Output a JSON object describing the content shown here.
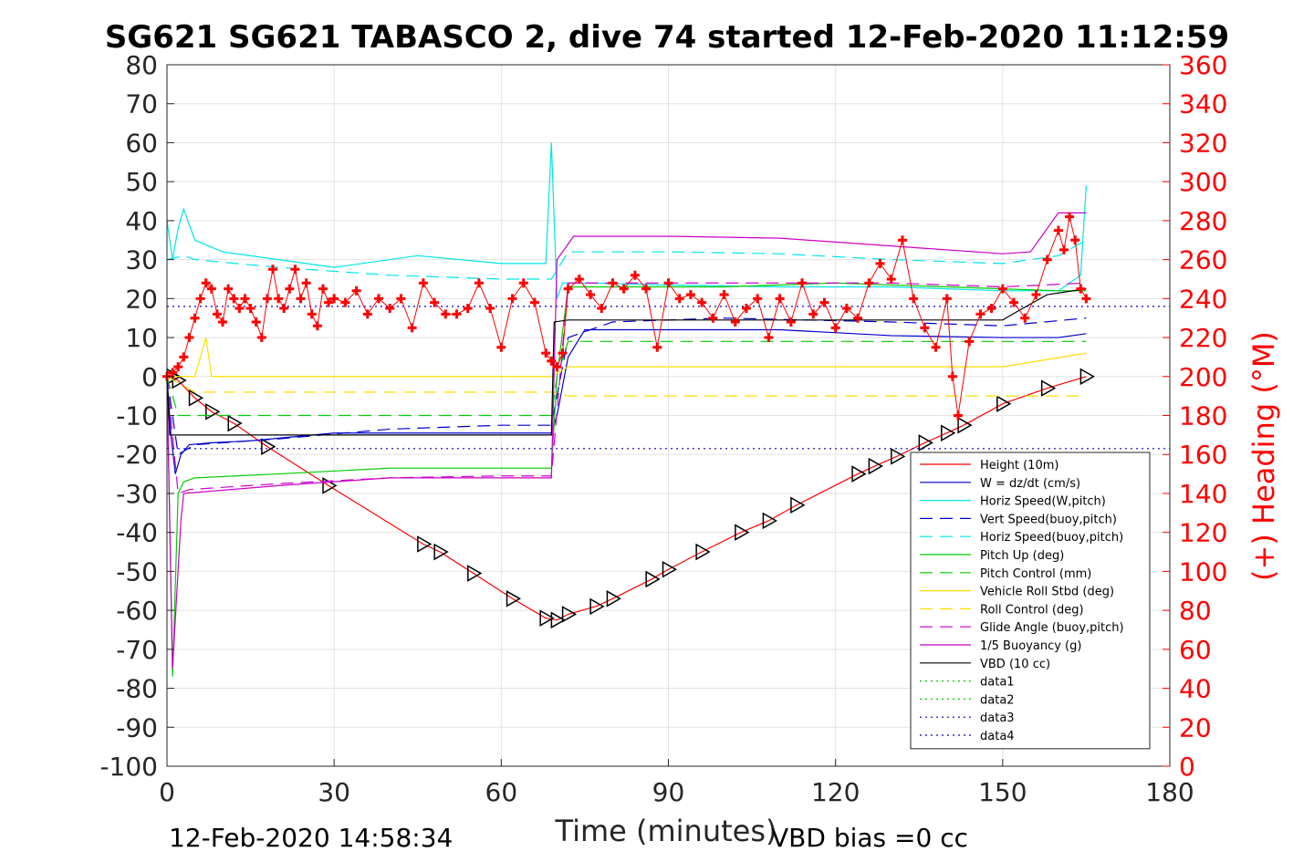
{
  "chart_data": {
    "type": "line",
    "title": "SG621 SG621 TABASCO 2, dive 74 started 12-Feb-2020 11:12:59",
    "xlabel": "Time (minutes)",
    "ylabel_right": "(+) Heading (°M)",
    "xlim": [
      0,
      180
    ],
    "ylim_left": [
      -100,
      80
    ],
    "ylim_right": [
      0,
      360
    ],
    "x_ticks": [
      "0",
      "30",
      "60",
      "90",
      "120",
      "150",
      "180"
    ],
    "y_left_ticks": [
      "80",
      "70",
      "60",
      "50",
      "40",
      "30",
      "20",
      "10",
      "0",
      "-10",
      "-20",
      "-30",
      "-40",
      "-50",
      "-60",
      "-70",
      "-80",
      "-90",
      "-100"
    ],
    "y_right_ticks": [
      "360",
      "340",
      "320",
      "300",
      "280",
      "260",
      "240",
      "220",
      "200",
      "180",
      "160",
      "140",
      "120",
      "100",
      "80",
      "60",
      "40",
      "20",
      "0"
    ],
    "grid": true,
    "legend_position": "bottom-right",
    "footer_left": "12-Feb-2020 14:58:34",
    "footer_right": "VBD bias =0 cc",
    "series": [
      {
        "name": "Height (10m)",
        "color": "#ff0000",
        "style": "solid",
        "x": [
          0,
          1,
          2,
          5,
          8,
          12,
          18,
          29,
          46,
          49,
          55,
          62,
          68,
          70,
          72,
          77,
          80,
          87,
          90,
          96,
          103,
          108,
          113,
          124,
          127,
          131,
          136,
          140,
          143,
          150,
          158,
          165
        ],
        "y": [
          0,
          0,
          -1,
          -5.5,
          -9,
          -12,
          -18,
          -28,
          -43,
          -45,
          -50.5,
          -57,
          -62,
          -62.5,
          -61,
          -59,
          -57,
          -52,
          -49.5,
          -45,
          -40,
          -37,
          -33,
          -25,
          -23,
          -20.5,
          -17,
          -14.5,
          -12.5,
          -7,
          -3,
          0
        ]
      },
      {
        "name": "W = dz/dt (cm/s)",
        "color": "#0000cc",
        "style": "solid",
        "x": [
          0,
          0.7,
          1.5,
          2.5,
          4,
          8,
          15,
          30,
          45,
          60,
          69,
          70,
          72,
          75,
          90,
          110,
          130,
          150,
          160,
          165
        ],
        "y": [
          0,
          -15,
          -25,
          -20,
          -17.5,
          -17,
          -16.5,
          -14.5,
          -14.5,
          -14.5,
          -14.5,
          -10,
          5,
          12,
          12,
          12,
          10.5,
          10,
          10,
          11
        ]
      },
      {
        "name": "Horiz Speed(W,pitch)",
        "color": "#00e5e5",
        "style": "solid",
        "x": [
          0,
          1,
          2,
          3,
          5,
          10,
          20,
          30,
          45,
          60,
          68,
          69,
          70,
          71,
          72,
          75,
          90,
          110,
          130,
          150,
          160,
          164,
          165
        ],
        "y": [
          40,
          30,
          38,
          43,
          35,
          32,
          30,
          28,
          31,
          29,
          29,
          60,
          20,
          24,
          24,
          24,
          23.5,
          23,
          23,
          22,
          22,
          26,
          49
        ]
      },
      {
        "name": "Vert Speed(buoy,pitch)",
        "color": "#0000cc",
        "style": "dash",
        "x": [
          0,
          2,
          5,
          20,
          40,
          60,
          69,
          72,
          80,
          100,
          130,
          150,
          165
        ],
        "y": [
          0,
          -20,
          -17.5,
          -16,
          -13.5,
          -12.5,
          -12.5,
          10,
          14,
          15,
          14,
          13,
          15
        ]
      },
      {
        "name": "Horiz Speed(buoy,pitch)",
        "color": "#00e5e5",
        "style": "dash",
        "x": [
          0,
          3,
          5,
          20,
          40,
          60,
          69,
          72,
          90,
          110,
          130,
          150,
          160,
          165
        ],
        "y": [
          30,
          31,
          30,
          28,
          26,
          25,
          25,
          32,
          32,
          31.5,
          30,
          29,
          31,
          35
        ]
      },
      {
        "name": "Pitch Up (deg)",
        "color": "#00cc00",
        "style": "solid",
        "x": [
          0,
          1,
          2,
          3,
          5,
          20,
          40,
          60,
          69,
          70,
          72,
          80,
          100,
          120,
          140,
          160,
          165
        ],
        "y": [
          0,
          -77,
          -30,
          -27,
          -26,
          -25,
          -23.5,
          -23.5,
          -23.5,
          0,
          23,
          23,
          23,
          24,
          23,
          22,
          22
        ]
      },
      {
        "name": "Pitch Control (mm)",
        "color": "#00cc00",
        "style": "dash",
        "x": [
          0,
          2,
          5,
          40,
          69,
          70,
          72,
          80,
          100,
          130,
          150,
          165
        ],
        "y": [
          0,
          -10,
          -10,
          -10,
          -10,
          0,
          9,
          9,
          9,
          9,
          9,
          9
        ]
      },
      {
        "name": "Vehicle Roll Stbd (deg)",
        "color": "#ffdd00",
        "style": "solid",
        "x": [
          0,
          5,
          7,
          8,
          9,
          30,
          45,
          60,
          69,
          72,
          75,
          90,
          110,
          130,
          150,
          165
        ],
        "y": [
          0,
          0,
          10,
          0,
          0,
          0,
          0,
          0,
          0,
          2.5,
          2.5,
          2.5,
          2.5,
          2.5,
          2.5,
          6
        ]
      },
      {
        "name": "Roll Control (deg)",
        "color": "#ffdd00",
        "style": "dash",
        "x": [
          0,
          5,
          20,
          40,
          60,
          69,
          72,
          90,
          110,
          130,
          150,
          165
        ],
        "y": [
          0,
          -4,
          -4,
          -4,
          -4,
          -4,
          -5,
          -5,
          -5,
          -5,
          -5,
          -5
        ]
      },
      {
        "name": "Glide Angle (buoy,pitch)",
        "color": "#cc00cc",
        "style": "dash",
        "x": [
          0,
          2,
          4,
          20,
          40,
          60,
          69,
          72,
          90,
          110,
          130,
          150,
          165
        ],
        "y": [
          0,
          -30,
          -29,
          -27.5,
          -26,
          -25.5,
          -25.5,
          24,
          24,
          24,
          24,
          23,
          24
        ]
      },
      {
        "name": "1/5 Buoyancy (g)",
        "color": "#cc00cc",
        "style": "solid",
        "x": [
          0,
          1,
          2.5,
          3,
          20,
          40,
          60,
          69,
          70,
          73,
          90,
          110,
          130,
          150,
          155,
          158,
          160,
          165
        ],
        "y": [
          0,
          -75,
          -37,
          -30,
          -28,
          -26,
          -26,
          -26,
          30,
          36,
          36,
          35.5,
          33.5,
          31.5,
          32,
          38,
          42,
          42
        ]
      },
      {
        "name": "VBD (10 cc)",
        "color": "#000000",
        "style": "solid",
        "x": [
          0,
          0.5,
          2,
          69,
          69.5,
          72,
          75,
          90,
          110,
          130,
          150,
          153,
          158,
          165
        ],
        "y": [
          0,
          -15,
          -15,
          -15,
          14,
          14.5,
          14.5,
          14.5,
          14.5,
          14.5,
          14.5,
          17,
          21,
          22.5
        ]
      },
      {
        "name": "data1",
        "color": "#00cc00",
        "style": "dot",
        "x": [
          0
        ],
        "y": [
          0
        ]
      },
      {
        "name": "data2",
        "color": "#00cc00",
        "style": "dot",
        "x": [
          0
        ],
        "y": [
          0
        ]
      },
      {
        "name": "data3",
        "color": "#0000cc",
        "style": "dot",
        "x": [
          0,
          180
        ],
        "y": [
          18,
          18
        ]
      },
      {
        "name": "data4",
        "color": "#0000cc",
        "style": "dot",
        "x": [
          0,
          180
        ],
        "y": [
          -18.5,
          -18.5
        ]
      },
      {
        "name": "Heading",
        "color": "#ff0000",
        "style": "marker-plus",
        "axis": "right",
        "x": [
          0,
          1,
          2,
          3,
          4,
          5,
          6,
          7,
          8,
          9,
          10,
          11,
          12,
          13,
          14,
          15,
          16,
          17,
          18,
          19,
          20,
          21,
          22,
          23,
          24,
          25,
          26,
          27,
          28,
          29,
          30,
          32,
          34,
          36,
          38,
          40,
          42,
          44,
          46,
          48,
          50,
          52,
          54,
          56,
          58,
          60,
          62,
          64,
          66,
          68,
          69,
          70,
          71,
          72,
          74,
          76,
          78,
          80,
          82,
          84,
          86,
          88,
          90,
          92,
          94,
          96,
          98,
          100,
          102,
          104,
          106,
          108,
          110,
          112,
          114,
          116,
          118,
          120,
          122,
          124,
          126,
          128,
          130,
          132,
          134,
          136,
          138,
          140,
          141,
          142,
          144,
          146,
          148,
          150,
          152,
          154,
          156,
          158,
          160,
          161,
          162,
          163,
          164,
          165
        ],
        "y": [
          200,
          202,
          205,
          210,
          220,
          230,
          240,
          248,
          245,
          232,
          228,
          245,
          240,
          235,
          240,
          235,
          228,
          220,
          240,
          255,
          240,
          235,
          245,
          255,
          240,
          248,
          232,
          226,
          245,
          238,
          240,
          238,
          244,
          232,
          240,
          235,
          240,
          225,
          248,
          238,
          232,
          232,
          235,
          248,
          235,
          215,
          240,
          248,
          238,
          212,
          208,
          205,
          212,
          245,
          250,
          242,
          235,
          248,
          245,
          252,
          245,
          215,
          248,
          240,
          242,
          238,
          230,
          242,
          228,
          235,
          240,
          220,
          240,
          228,
          248,
          232,
          238,
          225,
          235,
          230,
          248,
          258,
          250,
          270,
          240,
          225,
          215,
          240,
          200,
          180,
          218,
          232,
          235,
          245,
          238,
          230,
          242,
          260,
          275,
          265,
          282,
          270,
          245,
          240
        ]
      }
    ]
  }
}
